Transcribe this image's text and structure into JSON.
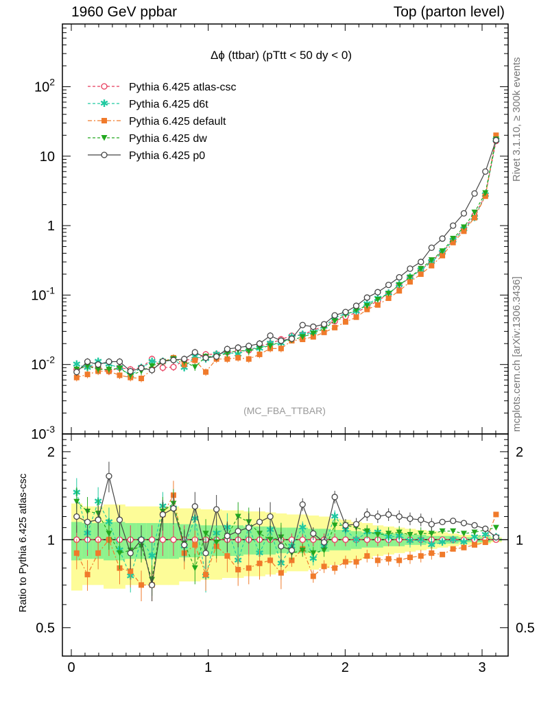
{
  "header": {
    "left": "1960 GeV ppbar",
    "right": "Top (parton level)"
  },
  "side_labels": {
    "rivet": "Rivet 3.1.10, ≥ 300k events",
    "source": "mcplots.cern.ch [arXiv:1306.3436]"
  },
  "plot_title": "Δϕ (ttbar) (pTtt < 50 dy < 0)",
  "watermark": "(MC_FBA_TTBAR)",
  "ratio_ylabel": "Ratio to Pythia 6.425 atlas-csc",
  "top_yticks": [
    "10^{-3}",
    "10^{-2}",
    "10^{-1}",
    "1",
    "10",
    "10^{2}"
  ],
  "ratio_yticks": [
    "0.5",
    "1",
    "2"
  ],
  "xticks": [
    "0",
    "1",
    "2",
    "3"
  ],
  "colors": {
    "atlas_csc": "#e8395a",
    "d6t": "#1fc9a0",
    "default": "#f07a2b",
    "dw": "#22a81f",
    "p0": "#444444",
    "band_yellow": "#fdfc98",
    "band_green": "#8ef28e"
  },
  "chart_data": {
    "type": "line",
    "x": [
      0.039,
      0.118,
      0.196,
      0.275,
      0.353,
      0.432,
      0.511,
      0.589,
      0.668,
      0.746,
      0.825,
      0.903,
      0.982,
      1.06,
      1.139,
      1.218,
      1.296,
      1.375,
      1.453,
      1.532,
      1.61,
      1.689,
      1.767,
      1.846,
      1.924,
      2.003,
      2.081,
      2.16,
      2.238,
      2.317,
      2.395,
      2.474,
      2.553,
      2.631,
      2.71,
      2.788,
      2.867,
      2.945,
      3.024,
      3.102
    ],
    "xlim": [
      0,
      3.1416
    ],
    "ylim": [
      0.001,
      800
    ],
    "log_y": true,
    "ratio_ylim": [
      0.4,
      2.3
    ],
    "legend_position": "top-left",
    "series": [
      {
        "name": "Pythia 6.425 atlas-csc",
        "marker": "open-circle",
        "line": "dashed",
        "values": [
          0.0085,
          0.0095,
          0.009,
          0.008,
          0.009,
          0.0085,
          0.009,
          0.012,
          0.009,
          0.0092,
          0.0115,
          0.012,
          0.014,
          0.014,
          0.015,
          0.0155,
          0.016,
          0.0185,
          0.02,
          0.023,
          0.026,
          0.027,
          0.031,
          0.036,
          0.042,
          0.049,
          0.056,
          0.068,
          0.082,
          0.105,
          0.138,
          0.178,
          0.23,
          0.31,
          0.42,
          0.61,
          0.9,
          1.4,
          2.7,
          16.5
        ]
      },
      {
        "name": "Pythia 6.425 d6t",
        "marker": "star",
        "line": "dashed",
        "values": [
          0.01,
          0.009,
          0.011,
          0.01,
          0.009,
          0.007,
          0.009,
          0.011,
          0.011,
          0.012,
          0.009,
          0.013,
          0.012,
          0.014,
          0.015,
          0.014,
          0.017,
          0.017,
          0.02,
          0.02,
          0.025,
          0.027,
          0.029,
          0.035,
          0.047,
          0.054,
          0.058,
          0.074,
          0.089,
          0.105,
          0.14,
          0.18,
          0.23,
          0.3,
          0.41,
          0.61,
          0.88,
          1.3,
          2.75,
          17.0
        ]
      },
      {
        "name": "Pythia 6.425 default",
        "marker": "square",
        "line": "dashdot",
        "values": [
          0.0065,
          0.0072,
          0.008,
          0.008,
          0.007,
          0.0065,
          0.0063,
          0.0085,
          0.011,
          0.0125,
          0.01,
          0.0115,
          0.0078,
          0.012,
          0.012,
          0.0125,
          0.012,
          0.014,
          0.017,
          0.017,
          0.022,
          0.023,
          0.025,
          0.029,
          0.034,
          0.041,
          0.048,
          0.062,
          0.072,
          0.09,
          0.115,
          0.155,
          0.2,
          0.265,
          0.37,
          0.57,
          0.83,
          1.3,
          2.65,
          20.0
        ]
      },
      {
        "name": "Pythia 6.425 dw",
        "marker": "down-triangle",
        "line": "dashed",
        "values": [
          0.0085,
          0.0095,
          0.0085,
          0.0085,
          0.0088,
          0.007,
          0.008,
          0.0095,
          0.011,
          0.012,
          0.011,
          0.0092,
          0.013,
          0.013,
          0.0145,
          0.016,
          0.0155,
          0.0175,
          0.0185,
          0.0215,
          0.0225,
          0.025,
          0.028,
          0.033,
          0.042,
          0.052,
          0.061,
          0.07,
          0.086,
          0.105,
          0.14,
          0.18,
          0.24,
          0.32,
          0.43,
          0.65,
          0.95,
          1.55,
          2.95,
          17.5
        ]
      },
      {
        "name": "Pythia 6.425 p0",
        "marker": "open-circle",
        "line": "solid",
        "values": [
          0.0078,
          0.011,
          0.01,
          0.011,
          0.011,
          0.008,
          0.0089,
          0.0083,
          0.0111,
          0.0116,
          0.012,
          0.015,
          0.0125,
          0.013,
          0.0167,
          0.0175,
          0.0185,
          0.02,
          0.026,
          0.022,
          0.0235,
          0.037,
          0.035,
          0.038,
          0.051,
          0.057,
          0.07,
          0.092,
          0.11,
          0.14,
          0.18,
          0.24,
          0.3,
          0.48,
          0.65,
          1.0,
          1.5,
          2.9,
          6.0,
          17.0
        ]
      }
    ],
    "ratio_series": [
      {
        "name": "Pythia 6.425 atlas-csc",
        "values": [
          1,
          1,
          1,
          1,
          1,
          1,
          1,
          1,
          1,
          1,
          1,
          1,
          1,
          1,
          1,
          1,
          1,
          1,
          1,
          1,
          1,
          1,
          1,
          1,
          1,
          1,
          1,
          1,
          1,
          1,
          1,
          1,
          1,
          1,
          1,
          1,
          1,
          1,
          1,
          1
        ]
      },
      {
        "name": "Pythia 6.425 d6t",
        "values": [
          1.45,
          1.05,
          1.35,
          1.15,
          0.92,
          0.75,
          1.0,
          0.88,
          1.3,
          1.28,
          0.95,
          1.18,
          0.75,
          1.05,
          1.1,
          0.85,
          1.1,
          0.9,
          1.08,
          0.83,
          0.95,
          1.1,
          0.86,
          0.95,
          1.2,
          1.08,
          1.0,
          1.06,
          1.06,
          1.02,
          1.03,
          0.99,
          1.0,
          0.96,
          0.98,
          1.0,
          0.98,
          1.02,
          1.04,
          1.02
        ]
      },
      {
        "name": "Pythia 6.425 default",
        "values": [
          0.9,
          0.76,
          0.9,
          1.0,
          0.8,
          0.78,
          0.7,
          0.7,
          1.22,
          1.42,
          0.9,
          0.96,
          0.76,
          0.95,
          0.88,
          0.79,
          0.8,
          0.83,
          0.85,
          0.77,
          0.85,
          0.93,
          0.75,
          0.81,
          0.8,
          0.84,
          0.84,
          0.88,
          0.85,
          0.86,
          0.85,
          0.87,
          0.88,
          0.9,
          0.89,
          0.93,
          0.94,
          0.96,
          0.98,
          1.22
        ]
      },
      {
        "name": "Pythia 6.425 dw",
        "values": [
          1.35,
          1.25,
          1.23,
          1.05,
          0.9,
          0.92,
          0.95,
          0.73,
          1.25,
          1.33,
          0.97,
          0.8,
          1.05,
          0.98,
          1.03,
          1.2,
          1.15,
          1.05,
          1.0,
          1.02,
          0.9,
          0.92,
          0.9,
          0.92,
          1.12,
          1.12,
          1.1,
          1.07,
          1.04,
          1.05,
          1.06,
          1.04,
          1.05,
          1.05,
          1.07,
          1.07,
          1.05,
          1.06,
          1.08,
          1.1
        ]
      },
      {
        "name": "Pythia 6.425 p0",
        "values": [
          1.2,
          1.15,
          1.17,
          1.65,
          1.17,
          0.9,
          1.0,
          0.7,
          1.22,
          1.28,
          0.96,
          1.3,
          0.9,
          1.27,
          1.03,
          1.07,
          1.1,
          1.15,
          1.2,
          0.95,
          0.92,
          1.32,
          1.05,
          0.98,
          1.4,
          1.12,
          1.13,
          1.22,
          1.2,
          1.22,
          1.2,
          1.18,
          1.17,
          1.13,
          1.15,
          1.16,
          1.14,
          1.12,
          1.09,
          1.02
        ]
      }
    ],
    "uncertainty_bands": {
      "yellow_half_width": [
        0.33,
        0.3,
        0.3,
        0.32,
        0.32,
        0.3,
        0.3,
        0.3,
        0.3,
        0.3,
        0.28,
        0.28,
        0.27,
        0.27,
        0.26,
        0.26,
        0.25,
        0.25,
        0.24,
        0.23,
        0.22,
        0.22,
        0.21,
        0.2,
        0.18,
        0.17,
        0.15,
        0.14,
        0.12,
        0.11,
        0.1,
        0.09,
        0.08,
        0.07,
        0.06,
        0.05,
        0.04,
        0.04,
        0.03,
        0.02
      ],
      "green_half_width": [
        0.15,
        0.14,
        0.14,
        0.15,
        0.15,
        0.14,
        0.14,
        0.14,
        0.14,
        0.14,
        0.13,
        0.13,
        0.12,
        0.12,
        0.12,
        0.12,
        0.11,
        0.11,
        0.11,
        0.1,
        0.1,
        0.1,
        0.09,
        0.09,
        0.08,
        0.08,
        0.07,
        0.06,
        0.06,
        0.05,
        0.05,
        0.04,
        0.04,
        0.03,
        0.03,
        0.03,
        0.02,
        0.02,
        0.02,
        0.01
      ]
    }
  }
}
